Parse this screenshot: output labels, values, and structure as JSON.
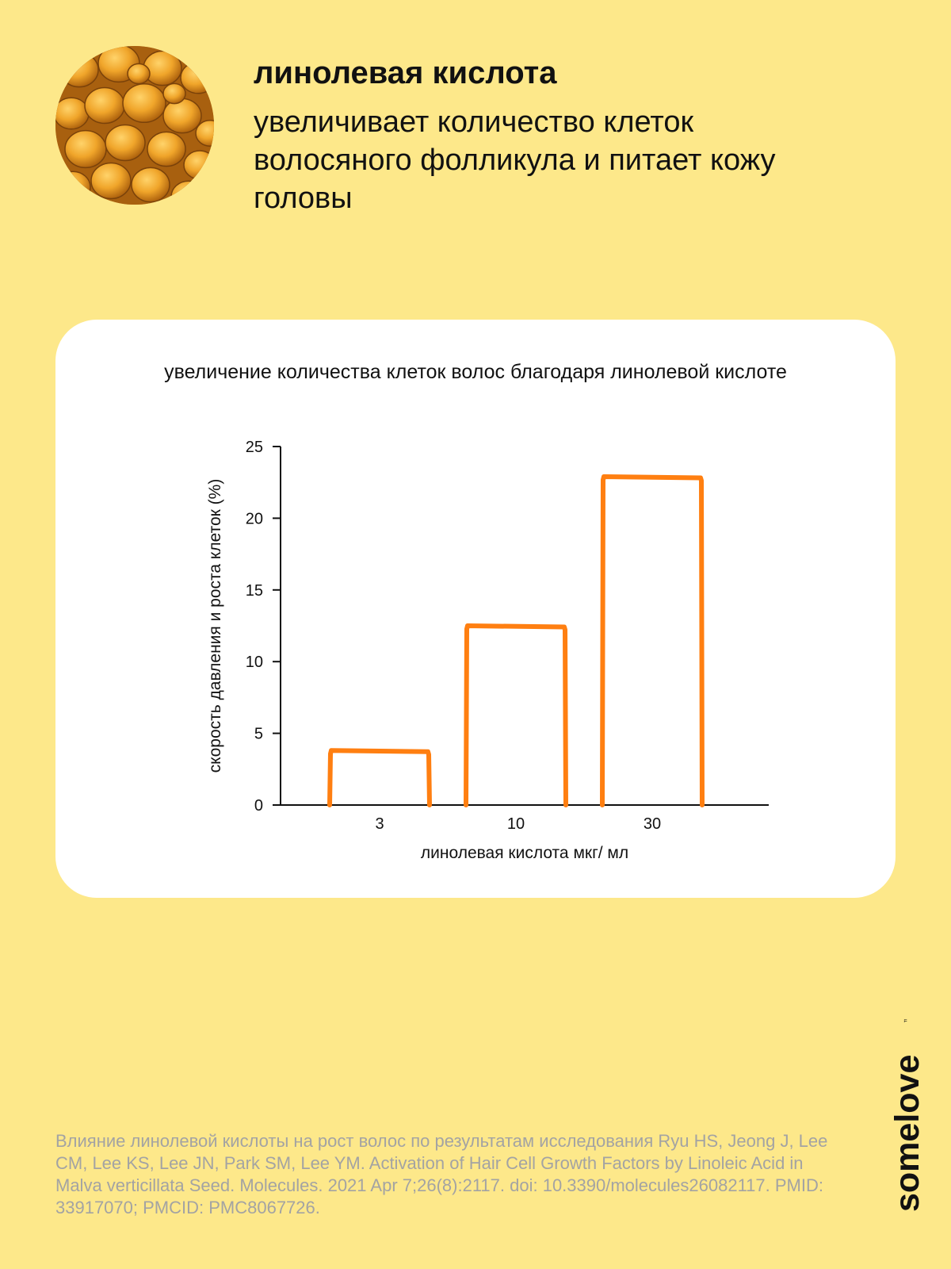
{
  "header": {
    "title": "линолевая кислота",
    "subtitle": "увеличивает количество клеток волосяного фолликула и питает кожу головы"
  },
  "brand": {
    "logo_text": "somelove",
    "trademark": "™"
  },
  "colors": {
    "background": "#fde88a",
    "accent": "#ff7f11",
    "card": "#ffffff",
    "footnote": "#a3a3a3"
  },
  "chart_data": {
    "type": "bar",
    "title": "увеличение количества клеток волос благодаря линолевой кислоте",
    "xlabel": "линолевая кислота мкг/ мл",
    "ylabel": "скорость давления и роста клеток (%)",
    "categories": [
      "3",
      "10",
      "30"
    ],
    "values": [
      3.8,
      12.5,
      22.9
    ],
    "ylim": [
      0,
      25
    ],
    "yticks": [
      "0",
      "5",
      "10",
      "15",
      "20",
      "25"
    ],
    "style": "outlined hand-drawn bars",
    "grid": false,
    "legend": "none"
  },
  "footnote": "Влияние линолевой кислоты на рост волос по результатам исследования Ryu HS, Jeong J, Lee CM, Lee KS, Lee JN, Park SM, Lee YM. Activation of Hair Cell Growth Factors by Linoleic Acid in Malva verticillata Seed. Molecules. 2021 Apr 7;26(8):2117. doi: 10.3390/molecules26082117. PMID: 33917070; PMCID: PMC8067726."
}
